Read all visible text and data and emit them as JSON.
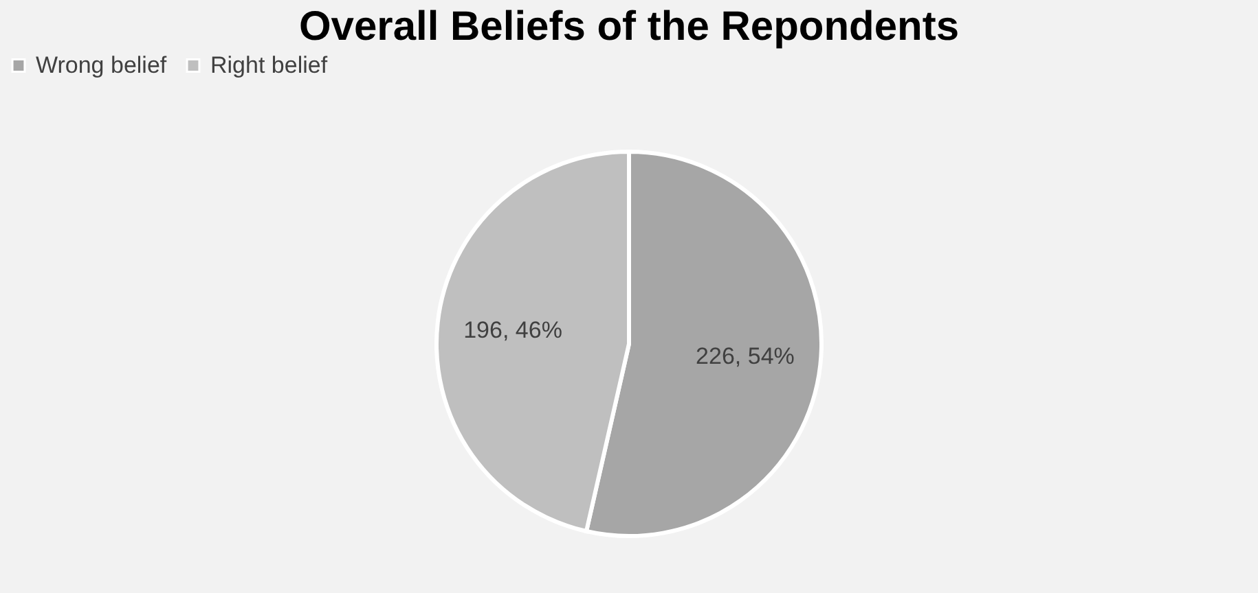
{
  "chart_data": {
    "type": "pie",
    "title": "Overall Beliefs of the Repondents",
    "categories": [
      "Wrong belief",
      "Right belief"
    ],
    "values": [
      226,
      196
    ],
    "colors": [
      "#a6a6a6",
      "#bfbfbf"
    ],
    "value_labels": [
      "226, 54%",
      "196, 46%"
    ],
    "legend": "top"
  }
}
